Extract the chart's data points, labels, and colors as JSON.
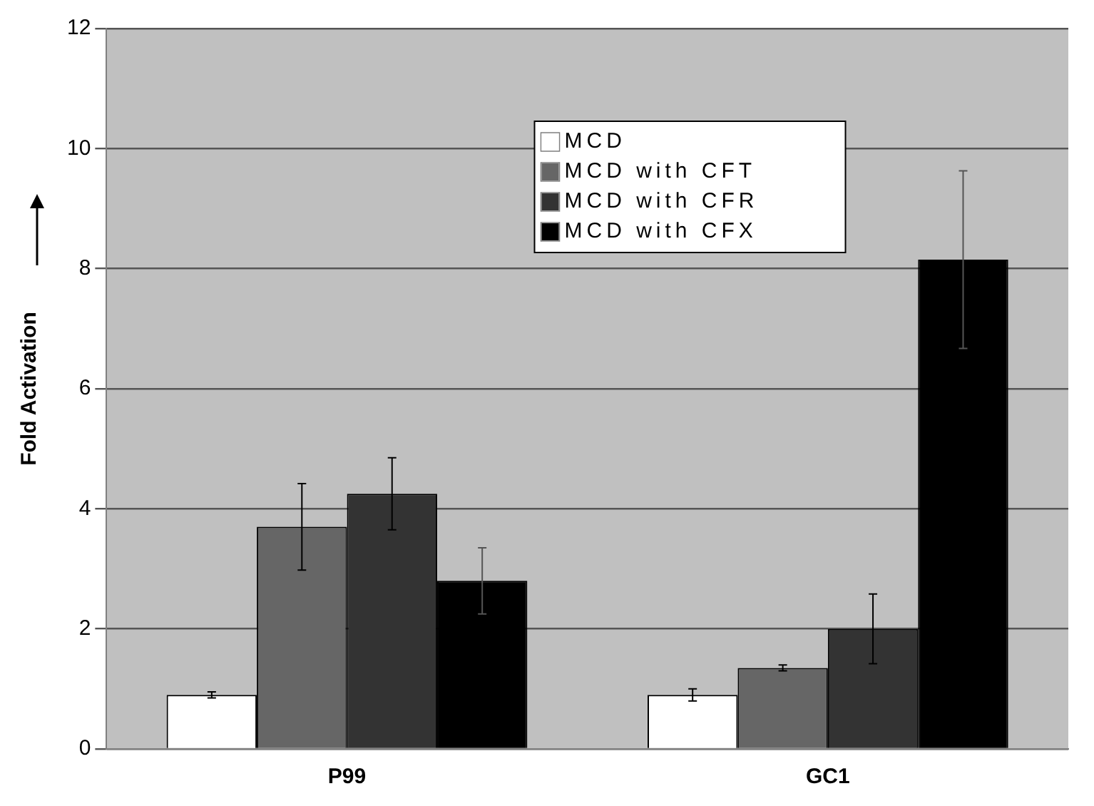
{
  "chart_data": {
    "type": "bar",
    "ylabel": "Fold Activation",
    "categories": [
      "P99",
      "GC1"
    ],
    "series": [
      {
        "name": "MCD",
        "color": "#ffffff",
        "values": [
          0.9,
          0.9
        ],
        "errors": [
          0.05,
          0.1
        ]
      },
      {
        "name": "MCD with CFT",
        "color": "#666666",
        "values": [
          3.7,
          1.35
        ],
        "errors": [
          0.72,
          0.05
        ]
      },
      {
        "name": "MCD with CFR",
        "color": "#333333",
        "values": [
          4.25,
          2.0
        ],
        "errors": [
          0.6,
          0.58
        ]
      },
      {
        "name": "MCD with CFX",
        "color": "#000000",
        "values": [
          2.8,
          8.15
        ],
        "errors": [
          0.55,
          1.48
        ]
      }
    ],
    "ylim": [
      0,
      12
    ],
    "yticks": [
      0,
      2,
      4,
      6,
      8,
      10,
      12
    ],
    "grid": "y",
    "legend": "top"
  }
}
